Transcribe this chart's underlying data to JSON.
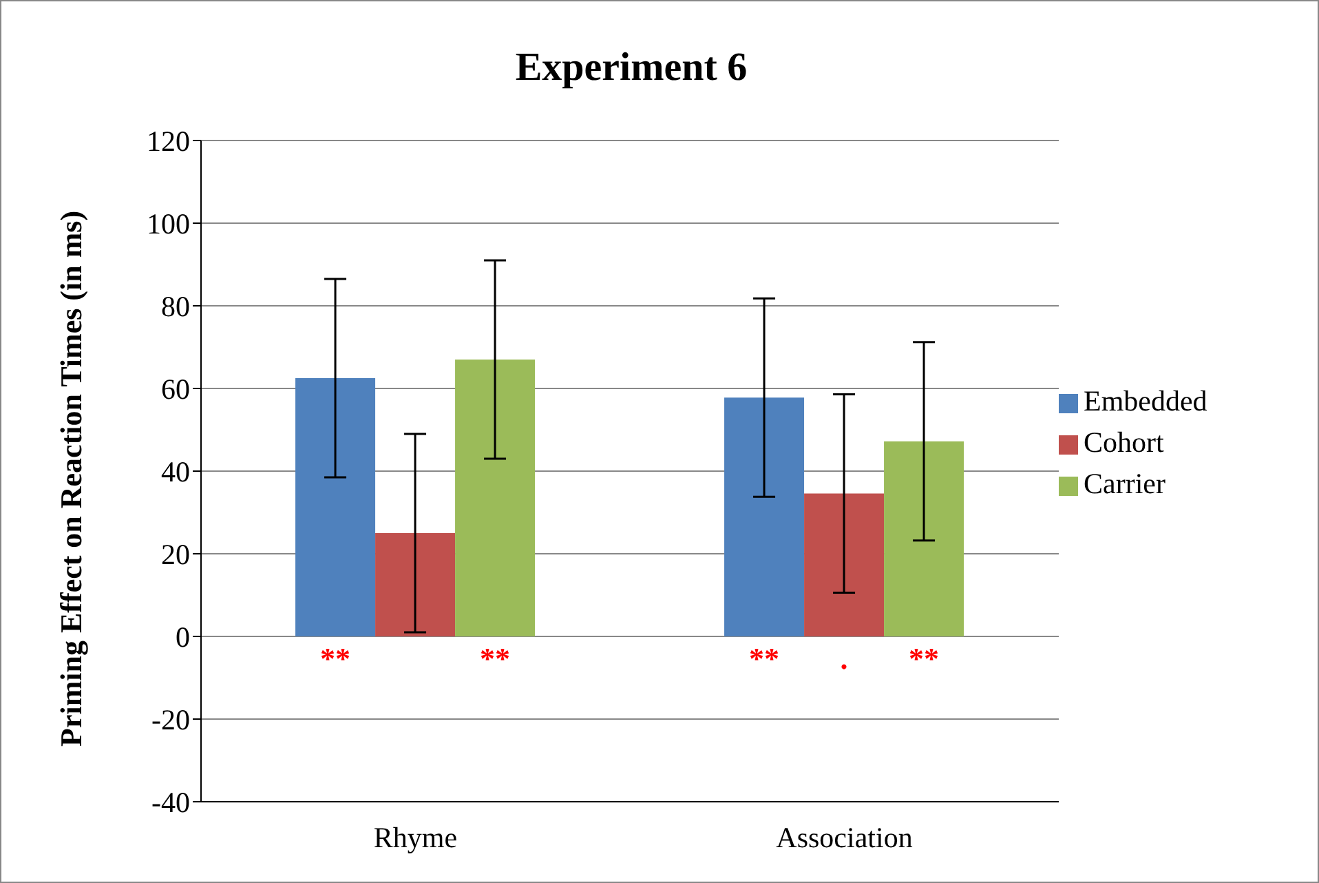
{
  "chart_data": {
    "type": "bar",
    "title": "Experiment 6",
    "ylabel": "Priming Effect on Reaction Times (in ms)",
    "categories": [
      "Rhyme",
      "Association"
    ],
    "series": [
      {
        "name": "Embedded",
        "color": "#4f81bd",
        "values": [
          62.5,
          57.8
        ],
        "errors": [
          24,
          24
        ],
        "value_labels": [
          "**",
          "**"
        ]
      },
      {
        "name": "Cohort",
        "color": "#c0504d",
        "values": [
          25,
          34.6
        ],
        "errors": [
          24,
          24
        ],
        "value_labels": [
          null,
          "."
        ]
      },
      {
        "name": "Carrier",
        "color": "#9bbb59",
        "values": [
          67,
          47.2
        ],
        "errors": [
          24,
          24
        ],
        "value_labels": [
          "**",
          "**"
        ]
      }
    ],
    "ylim": [
      -40,
      120
    ],
    "yticks": [
      -40,
      -20,
      0,
      20,
      40,
      60,
      80,
      100,
      120
    ],
    "grid": "y",
    "legend": "right"
  }
}
